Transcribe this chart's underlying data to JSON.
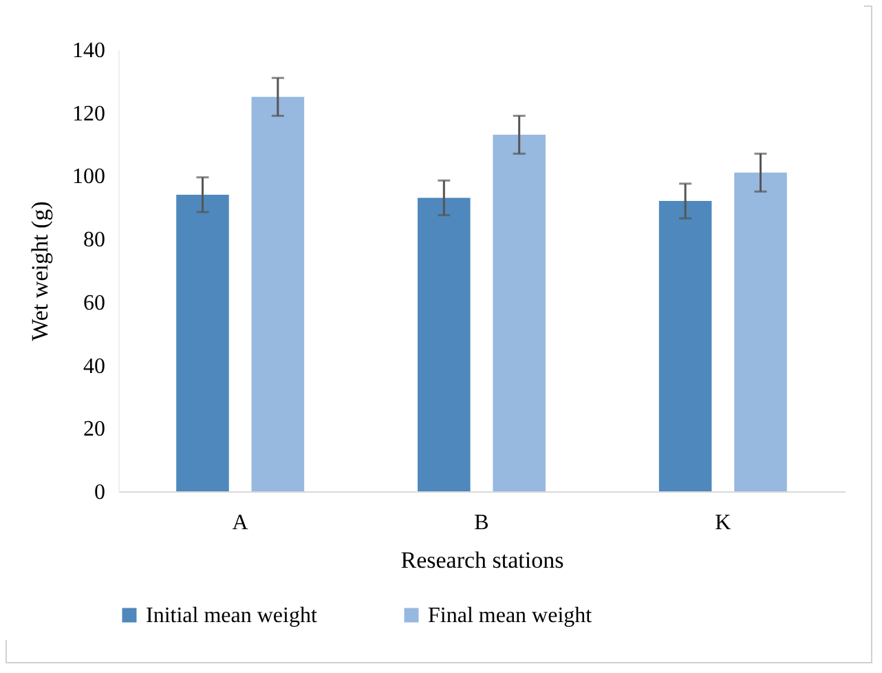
{
  "chart_data": {
    "type": "bar",
    "xlabel": "Research stations",
    "ylabel": "Wet weight (g)",
    "categories": [
      "A",
      "B",
      "K"
    ],
    "series": [
      {
        "name": "Initial mean weight",
        "color": "#4f88bc",
        "values": [
          94,
          93,
          92
        ],
        "errors": [
          5.5,
          5.5,
          5.5
        ]
      },
      {
        "name": "Final mean weight",
        "color": "#97b8df",
        "values": [
          125,
          113,
          101
        ],
        "errors": [
          6,
          6,
          6
        ]
      }
    ],
    "ylim": [
      0,
      140
    ],
    "yticks": [
      0,
      20,
      40,
      60,
      80,
      100,
      120,
      140
    ],
    "grid": false,
    "legend": "bottom"
  }
}
